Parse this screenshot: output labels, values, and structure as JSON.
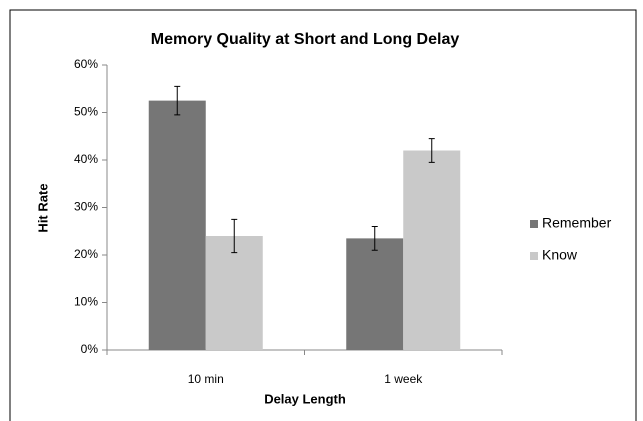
{
  "chart_data": {
    "type": "bar",
    "title": "Memory Quality at Short and Long Delay",
    "x_label": "Delay Length",
    "y_label": "Hit Rate",
    "categories": [
      "10 min",
      "1 week"
    ],
    "series": [
      {
        "name": "Remember",
        "color": "#767676",
        "values": [
          52.5,
          23.5
        ],
        "errors": [
          3,
          2.5
        ]
      },
      {
        "name": "Know",
        "color": "#c9c9c9",
        "values": [
          24,
          42
        ],
        "errors": [
          3.5,
          2.5
        ]
      }
    ],
    "ylim": [
      0,
      60
    ],
    "yticks": [
      {
        "value": 0,
        "label": "0%"
      },
      {
        "value": 10,
        "label": "10%"
      },
      {
        "value": 20,
        "label": "20%"
      },
      {
        "value": 30,
        "label": "30%"
      },
      {
        "value": 40,
        "label": "40%"
      },
      {
        "value": 50,
        "label": "50%"
      },
      {
        "value": 60,
        "label": "60%"
      }
    ],
    "grid": false,
    "legend": "right"
  }
}
